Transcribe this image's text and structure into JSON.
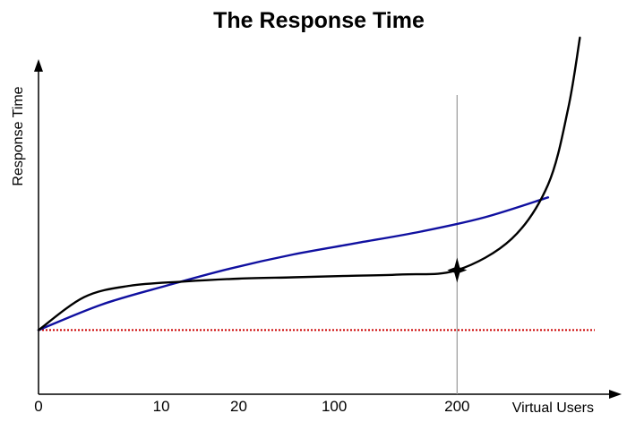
{
  "chart_data": {
    "type": "line",
    "title": "The Response Time",
    "ylabel": "Response Time",
    "xlabel": "Virtual Users",
    "categories": [
      "0",
      "10",
      "20",
      "100",
      "200"
    ],
    "grid": false,
    "colors": {
      "blue_curve": "#1010a0",
      "black_curve": "#000000",
      "baseline": "#cc0000",
      "marker_line": "#999999"
    },
    "series": [
      {
        "key": "blue",
        "x": [
          0,
          0.7,
          1.4,
          2.1,
          2.8,
          3.5,
          4.2,
          4.9,
          5.6
        ],
        "y": [
          0.0,
          0.18,
          0.31,
          0.43,
          0.53,
          0.61,
          0.69,
          0.79,
          0.93
        ]
      },
      {
        "key": "black",
        "x": [
          0,
          0.5,
          1.0,
          1.6,
          2.2,
          2.8,
          3.4,
          4.0,
          4.6,
          5.2,
          5.6,
          5.82,
          5.95
        ],
        "y": [
          0.0,
          0.23,
          0.31,
          0.34,
          0.36,
          0.37,
          0.38,
          0.39,
          0.42,
          0.64,
          1.02,
          1.55,
          2.05
        ]
      }
    ],
    "baseline_y": 0,
    "marker_x": 4.6,
    "xlim": [
      0,
      6.3
    ],
    "ylim": [
      -0.45,
      2.05
    ]
  }
}
